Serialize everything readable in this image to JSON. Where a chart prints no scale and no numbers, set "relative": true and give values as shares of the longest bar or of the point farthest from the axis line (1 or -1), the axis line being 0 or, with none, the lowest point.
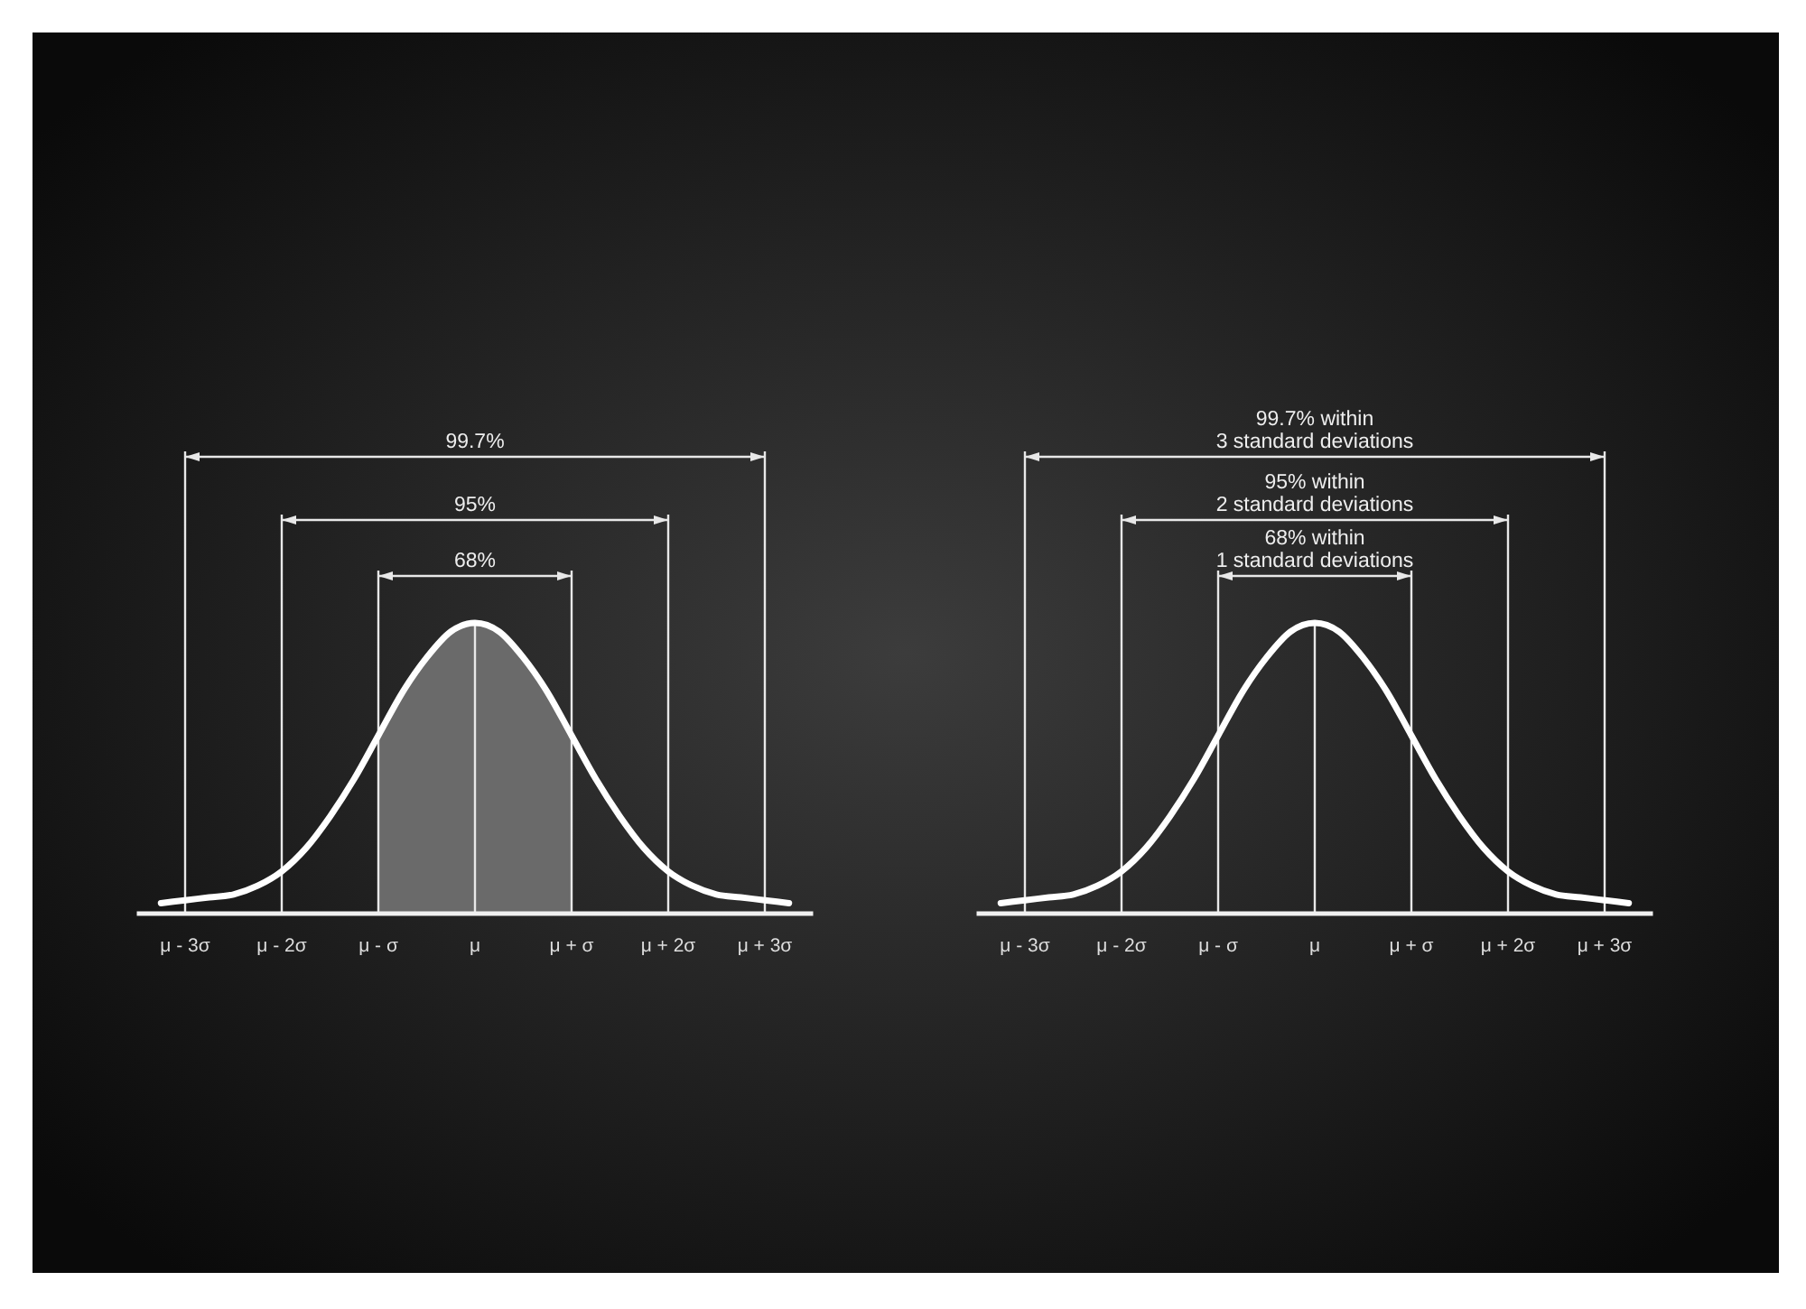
{
  "chart_data": [
    {
      "type": "line",
      "relative": true,
      "xlim": [
        -3.5,
        3.5
      ],
      "xticks": [
        {
          "value": -3,
          "label": "μ - 3σ"
        },
        {
          "value": -2,
          "label": "μ - 2σ"
        },
        {
          "value": -1,
          "label": "μ - σ"
        },
        {
          "value": 0,
          "label": "μ"
        },
        {
          "value": 1,
          "label": "μ + σ"
        },
        {
          "value": 2,
          "label": "μ + 2σ"
        },
        {
          "value": 3,
          "label": "μ + 3σ"
        }
      ],
      "series": [
        {
          "color": "#ffffff",
          "x": [
            -3.25,
            -3,
            -2.75,
            -2.5,
            -2.25,
            -2,
            -1.75,
            -1.5,
            -1.25,
            -1,
            -0.75,
            -0.5,
            -0.25,
            0,
            0.25,
            0.5,
            0.75,
            1,
            1.25,
            1.5,
            1.75,
            2,
            2.25,
            2.5,
            2.75,
            3,
            3.25
          ],
          "values": [
            0.03,
            0.04,
            0.05,
            0.06,
            0.09,
            0.14,
            0.22,
            0.33,
            0.46,
            0.61,
            0.76,
            0.88,
            0.97,
            1,
            0.97,
            0.88,
            0.76,
            0.61,
            0.46,
            0.33,
            0.22,
            0.14,
            0.09,
            0.06,
            0.05,
            0.04,
            0.03
          ]
        }
      ],
      "bands": [
        {
          "axis": "x",
          "from": -1,
          "to": 1,
          "color": "#6a6a6a"
        }
      ],
      "ref_lines": [
        {
          "axis": "x",
          "value": -3
        },
        {
          "axis": "x",
          "value": -2
        },
        {
          "axis": "x",
          "value": -1
        },
        {
          "axis": "x",
          "value": 0
        },
        {
          "axis": "x",
          "value": 1
        },
        {
          "axis": "x",
          "value": 2
        },
        {
          "axis": "x",
          "value": 3
        }
      ],
      "annotations": [
        "99.7%",
        "95%",
        "68%"
      ],
      "marker": "none",
      "line_style": "solid"
    },
    {
      "type": "line",
      "relative": true,
      "xlim": [
        -3.5,
        3.5
      ],
      "xticks": [
        {
          "value": -3,
          "label": "μ - 3σ"
        },
        {
          "value": -2,
          "label": "μ - 2σ"
        },
        {
          "value": -1,
          "label": "μ - σ"
        },
        {
          "value": 0,
          "label": "μ"
        },
        {
          "value": 1,
          "label": "μ + σ"
        },
        {
          "value": 2,
          "label": "μ + 2σ"
        },
        {
          "value": 3,
          "label": "μ + 3σ"
        }
      ],
      "series": [
        {
          "color": "#ffffff",
          "x": [
            -3.25,
            -3,
            -2.75,
            -2.5,
            -2.25,
            -2,
            -1.75,
            -1.5,
            -1.25,
            -1,
            -0.75,
            -0.5,
            -0.25,
            0,
            0.25,
            0.5,
            0.75,
            1,
            1.25,
            1.5,
            1.75,
            2,
            2.25,
            2.5,
            2.75,
            3,
            3.25
          ],
          "values": [
            0.03,
            0.04,
            0.05,
            0.06,
            0.09,
            0.14,
            0.22,
            0.33,
            0.46,
            0.61,
            0.76,
            0.88,
            0.97,
            1,
            0.97,
            0.88,
            0.76,
            0.61,
            0.46,
            0.33,
            0.22,
            0.14,
            0.09,
            0.06,
            0.05,
            0.04,
            0.03
          ]
        }
      ],
      "ref_lines": [
        {
          "axis": "x",
          "value": -3
        },
        {
          "axis": "x",
          "value": -2
        },
        {
          "axis": "x",
          "value": -1
        },
        {
          "axis": "x",
          "value": 0
        },
        {
          "axis": "x",
          "value": 1
        },
        {
          "axis": "x",
          "value": 2
        },
        {
          "axis": "x",
          "value": 3
        }
      ],
      "annotations": [
        "99.7% within\n3 standard deviations",
        "95% within\n2 standard deviations",
        "68% within\n1 standard deviations"
      ],
      "marker": "none",
      "line_style": "solid"
    }
  ]
}
